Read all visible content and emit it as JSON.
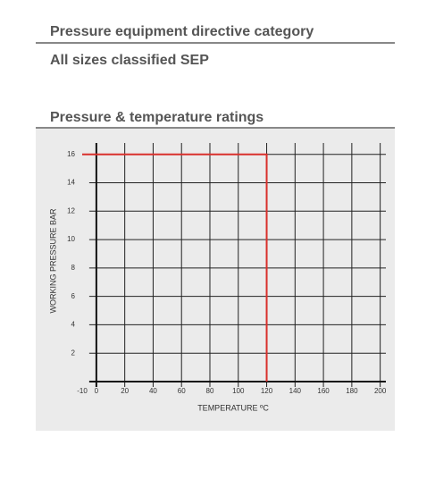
{
  "header": {
    "title": "Pressure equipment directive category",
    "classification": "All sizes classified SEP"
  },
  "section": {
    "title": "Pressure & temperature ratings"
  },
  "chart_data": {
    "type": "line",
    "x_label": "TEMPERATURE ºC",
    "y_label": "WORKING PRESSURE BAR",
    "x": [
      -10,
      120,
      120
    ],
    "series": [
      {
        "color": "#d9302c",
        "values": [
          16,
          16,
          0
        ]
      }
    ],
    "xlim": [
      -10,
      204
    ],
    "ylim": [
      0,
      16.8
    ],
    "xticks": [
      -10,
      0,
      20,
      40,
      60,
      80,
      100,
      120,
      140,
      160,
      180,
      200
    ],
    "yticks": [
      2,
      4,
      6,
      8,
      10,
      12,
      14,
      16
    ],
    "grid": true
  }
}
